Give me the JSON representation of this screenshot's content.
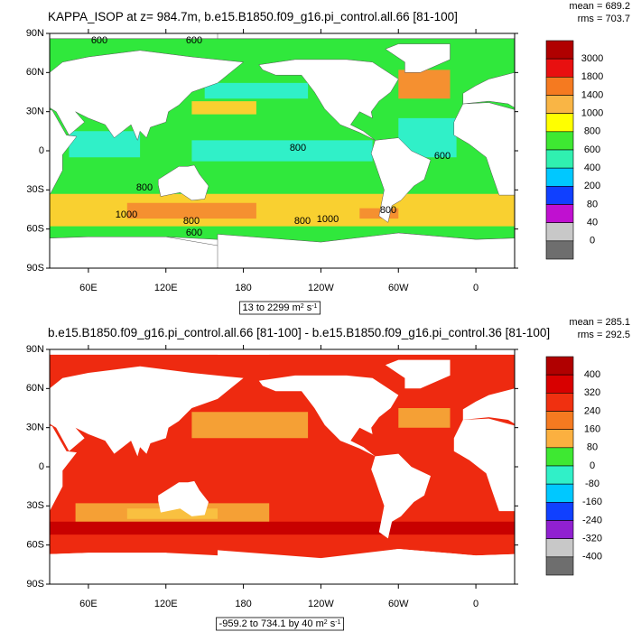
{
  "panels": [
    {
      "title": "KAPPA_ISOP at z= 984.7m, b.e15.B1850.f09_g16.pi_control.all.66 [81-100]",
      "mean": "mean = 689.2",
      "rms": "rms = 703.7",
      "lat_labels": [
        "90N",
        "60N",
        "30N",
        "0",
        "30S",
        "60S",
        "90S"
      ],
      "lon_labels": [
        "60E",
        "120E",
        "180",
        "120W",
        "60W",
        "0"
      ],
      "colorbar_labels": [
        "3000",
        "1800",
        "1400",
        "1000",
        "800",
        "600",
        "400",
        "200",
        "80",
        "40",
        "0"
      ],
      "range_label": [
        "13 to 2299 m",
        "2",
        " s",
        "-1"
      ],
      "contour_labels": [
        "600",
        "600",
        "800",
        "1000",
        "800",
        "600",
        "800",
        "1000",
        "800",
        "600",
        "800"
      ]
    },
    {
      "title": "b.e15.B1850.f09_g16.pi_control.all.66 [81-100] - b.e15.B1850.f09_g16.pi_control.36 [81-100]",
      "mean": "mean = 285.1",
      "rms": "rms = 292.5",
      "lat_labels": [
        "90N",
        "60N",
        "30N",
        "0",
        "30S",
        "60S",
        "90S"
      ],
      "lon_labels": [
        "60E",
        "120E",
        "180",
        "120W",
        "60W",
        "0"
      ],
      "colorbar_labels": [
        "400",
        "320",
        "240",
        "160",
        "80",
        "0",
        "-80",
        "-160",
        "-240",
        "-320",
        "-400"
      ],
      "range_label": [
        "-959.2 to 734.1 by 40 m",
        "2",
        " s",
        "-1"
      ],
      "contour_labels": []
    }
  ]
}
